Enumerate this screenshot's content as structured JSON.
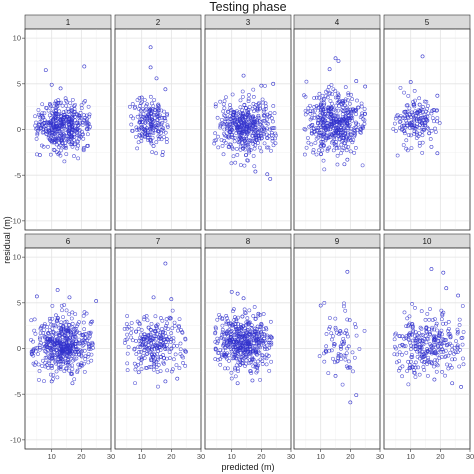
{
  "chart_data": {
    "type": "scatter",
    "title": "Testing phase",
    "xlabel": "predicted (m)",
    "ylabel": "residual (m)",
    "xlim": [
      1,
      30
    ],
    "ylim": [
      -11,
      11
    ],
    "x_ticks": [
      10,
      20,
      30
    ],
    "y_ticks": [
      -10,
      -5,
      0,
      5,
      10
    ],
    "x_tick_labels": [
      "10",
      "20",
      "30"
    ],
    "y_tick_labels": [
      "-10",
      "-5",
      "0",
      "5",
      "10"
    ],
    "grid": true,
    "layout": "facet grid, 2 rows × 5 columns",
    "point_color": "#3333cc",
    "point_style": "hollow-circle",
    "panels": [
      {
        "label": "1",
        "x_range": [
          4,
          23
        ],
        "y_mean": 0.3,
        "y_spread": 1.3,
        "n": 420,
        "outliers": [
          [
            8,
            6.5
          ],
          [
            21,
            6.9
          ],
          [
            10,
            4.9
          ],
          [
            13,
            4.5
          ],
          [
            22,
            -1.8
          ],
          [
            6,
            -2.8
          ]
        ]
      },
      {
        "label": "2",
        "x_range": [
          6,
          19
        ],
        "y_mean": 0.5,
        "y_spread": 1.2,
        "n": 190,
        "outliers": [
          [
            13,
            9.0
          ],
          [
            13,
            6.8
          ],
          [
            15,
            5.6
          ],
          [
            18,
            4.4
          ],
          [
            10,
            3.5
          ],
          [
            17,
            -2.8
          ],
          [
            14,
            -1.8
          ]
        ]
      },
      {
        "label": "3",
        "x_range": [
          4,
          25
        ],
        "y_mean": 0.3,
        "y_spread": 1.6,
        "n": 420,
        "outliers": [
          [
            14,
            5.9
          ],
          [
            24,
            5.0
          ],
          [
            20,
            4.8
          ],
          [
            18,
            -4.6
          ],
          [
            22,
            -4.9
          ],
          [
            23,
            -5.4
          ]
        ]
      },
      {
        "label": "4",
        "x_range": [
          4,
          25
        ],
        "y_mean": 0.8,
        "y_spread": 1.6,
        "n": 460,
        "outliers": [
          [
            15,
            7.8
          ],
          [
            16,
            7.5
          ],
          [
            13,
            6.6
          ],
          [
            22,
            5.3
          ],
          [
            25,
            4.7
          ],
          [
            18,
            -3.8
          ],
          [
            19,
            -3.3
          ]
        ]
      },
      {
        "label": "5",
        "x_range": [
          4,
          20
        ],
        "y_mean": 0.9,
        "y_spread": 1.2,
        "n": 170,
        "outliers": [
          [
            14,
            8.0
          ],
          [
            10,
            5.2
          ],
          [
            19,
            3.7
          ],
          [
            17,
            -1.9
          ],
          [
            19,
            -2.6
          ]
        ]
      },
      {
        "label": "6",
        "x_range": [
          3,
          24
        ],
        "y_mean": 0.4,
        "y_spread": 1.5,
        "n": 480,
        "outliers": [
          [
            12,
            6.4
          ],
          [
            25,
            5.2
          ],
          [
            5,
            5.7
          ],
          [
            16,
            5.6
          ],
          [
            17,
            -3.8
          ],
          [
            10,
            -3.6
          ]
        ]
      },
      {
        "label": "7",
        "x_range": [
          4,
          25
        ],
        "y_mean": 0.4,
        "y_spread": 1.6,
        "n": 260,
        "outliers": [
          [
            18,
            9.3
          ],
          [
            14,
            5.6
          ],
          [
            20,
            5.4
          ],
          [
            22,
            -3.3
          ],
          [
            18,
            -3.6
          ],
          [
            9,
            -2.6
          ]
        ]
      },
      {
        "label": "8",
        "x_range": [
          4,
          24
        ],
        "y_mean": 0.6,
        "y_spread": 1.5,
        "n": 460,
        "outliers": [
          [
            10,
            6.2
          ],
          [
            12,
            6.0
          ],
          [
            14,
            5.5
          ],
          [
            19,
            3.8
          ],
          [
            17,
            -3.5
          ],
          [
            12,
            -3.8
          ]
        ]
      },
      {
        "label": "9",
        "x_range": [
          8,
          26
        ],
        "y_mean": 0.4,
        "y_spread": 1.8,
        "n": 75,
        "outliers": [
          [
            19,
            8.4
          ],
          [
            10,
            4.7
          ],
          [
            20,
            -5.9
          ],
          [
            22,
            -5.1
          ],
          [
            15,
            -3.0
          ]
        ]
      },
      {
        "label": "10",
        "x_range": [
          4,
          28
        ],
        "y_mean": 0.5,
        "y_spread": 1.8,
        "n": 290,
        "outliers": [
          [
            17,
            8.7
          ],
          [
            21,
            8.3
          ],
          [
            22,
            6.6
          ],
          [
            26,
            5.8
          ],
          [
            24,
            -3.8
          ],
          [
            27,
            -4.2
          ],
          [
            18,
            -3.4
          ]
        ]
      }
    ]
  }
}
